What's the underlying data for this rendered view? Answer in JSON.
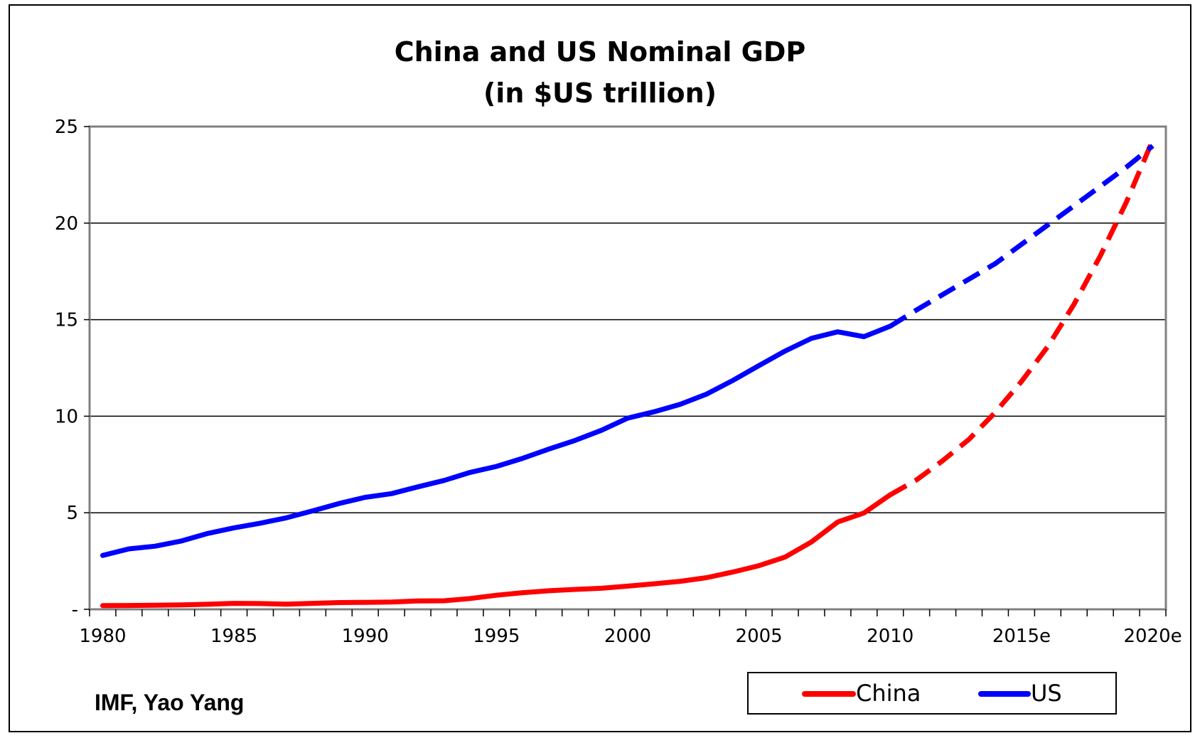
{
  "chart_data": {
    "type": "line",
    "title": [
      "China and US Nominal GDP",
      "(in $US trillion)"
    ],
    "source": "IMF, Yao Yang",
    "x_tick_labels": [
      "1980",
      "1985",
      "1990",
      "1995",
      "2000",
      "2005",
      "2010",
      "2015e",
      "2020e"
    ],
    "y_tick_labels": [
      "-",
      "5",
      "10",
      "15",
      "20",
      "25"
    ],
    "ylim": [
      0,
      25
    ],
    "yticks": [
      0,
      5,
      10,
      15,
      20,
      25
    ],
    "xlim": [
      1980,
      2020
    ],
    "grid": "horizontal",
    "legend_position": "bottom-right",
    "estimate_from": 2010,
    "series": [
      {
        "name": "China",
        "color": "#ff0000",
        "x": [
          1980,
          1981,
          1982,
          1983,
          1984,
          1985,
          1986,
          1987,
          1988,
          1989,
          1990,
          1991,
          1992,
          1993,
          1994,
          1995,
          1996,
          1997,
          1998,
          1999,
          2000,
          2001,
          2002,
          2003,
          2004,
          2005,
          2006,
          2007,
          2008,
          2009,
          2010,
          2011,
          2012,
          2013,
          2014,
          2015,
          2016,
          2017,
          2018,
          2019,
          2020
        ],
        "values": [
          0.19,
          0.2,
          0.21,
          0.23,
          0.26,
          0.31,
          0.3,
          0.27,
          0.31,
          0.35,
          0.36,
          0.38,
          0.43,
          0.44,
          0.56,
          0.73,
          0.86,
          0.96,
          1.03,
          1.09,
          1.2,
          1.32,
          1.45,
          1.64,
          1.93,
          2.26,
          2.71,
          3.49,
          4.52,
          4.99,
          5.93,
          6.7,
          7.7,
          8.8,
          10.2,
          11.8,
          13.6,
          15.8,
          18.3,
          21.1,
          24.3
        ]
      },
      {
        "name": "US",
        "color": "#0000ff",
        "x": [
          1980,
          1981,
          1982,
          1983,
          1984,
          1985,
          1986,
          1987,
          1988,
          1989,
          1990,
          1991,
          1992,
          1993,
          1994,
          1995,
          1996,
          1997,
          1998,
          1999,
          2000,
          2001,
          2002,
          2003,
          2004,
          2005,
          2006,
          2007,
          2008,
          2009,
          2010,
          2011,
          2012,
          2013,
          2014,
          2015,
          2016,
          2017,
          2018,
          2019,
          2020
        ],
        "values": [
          2.79,
          3.13,
          3.27,
          3.54,
          3.93,
          4.22,
          4.46,
          4.74,
          5.1,
          5.48,
          5.8,
          5.99,
          6.34,
          6.67,
          7.09,
          7.4,
          7.82,
          8.3,
          8.75,
          9.27,
          9.9,
          10.23,
          10.62,
          11.14,
          11.85,
          12.62,
          13.38,
          14.03,
          14.37,
          14.12,
          14.66,
          15.5,
          16.3,
          17.1,
          17.9,
          18.9,
          19.9,
          20.9,
          21.9,
          22.9,
          24.0
        ]
      }
    ]
  }
}
